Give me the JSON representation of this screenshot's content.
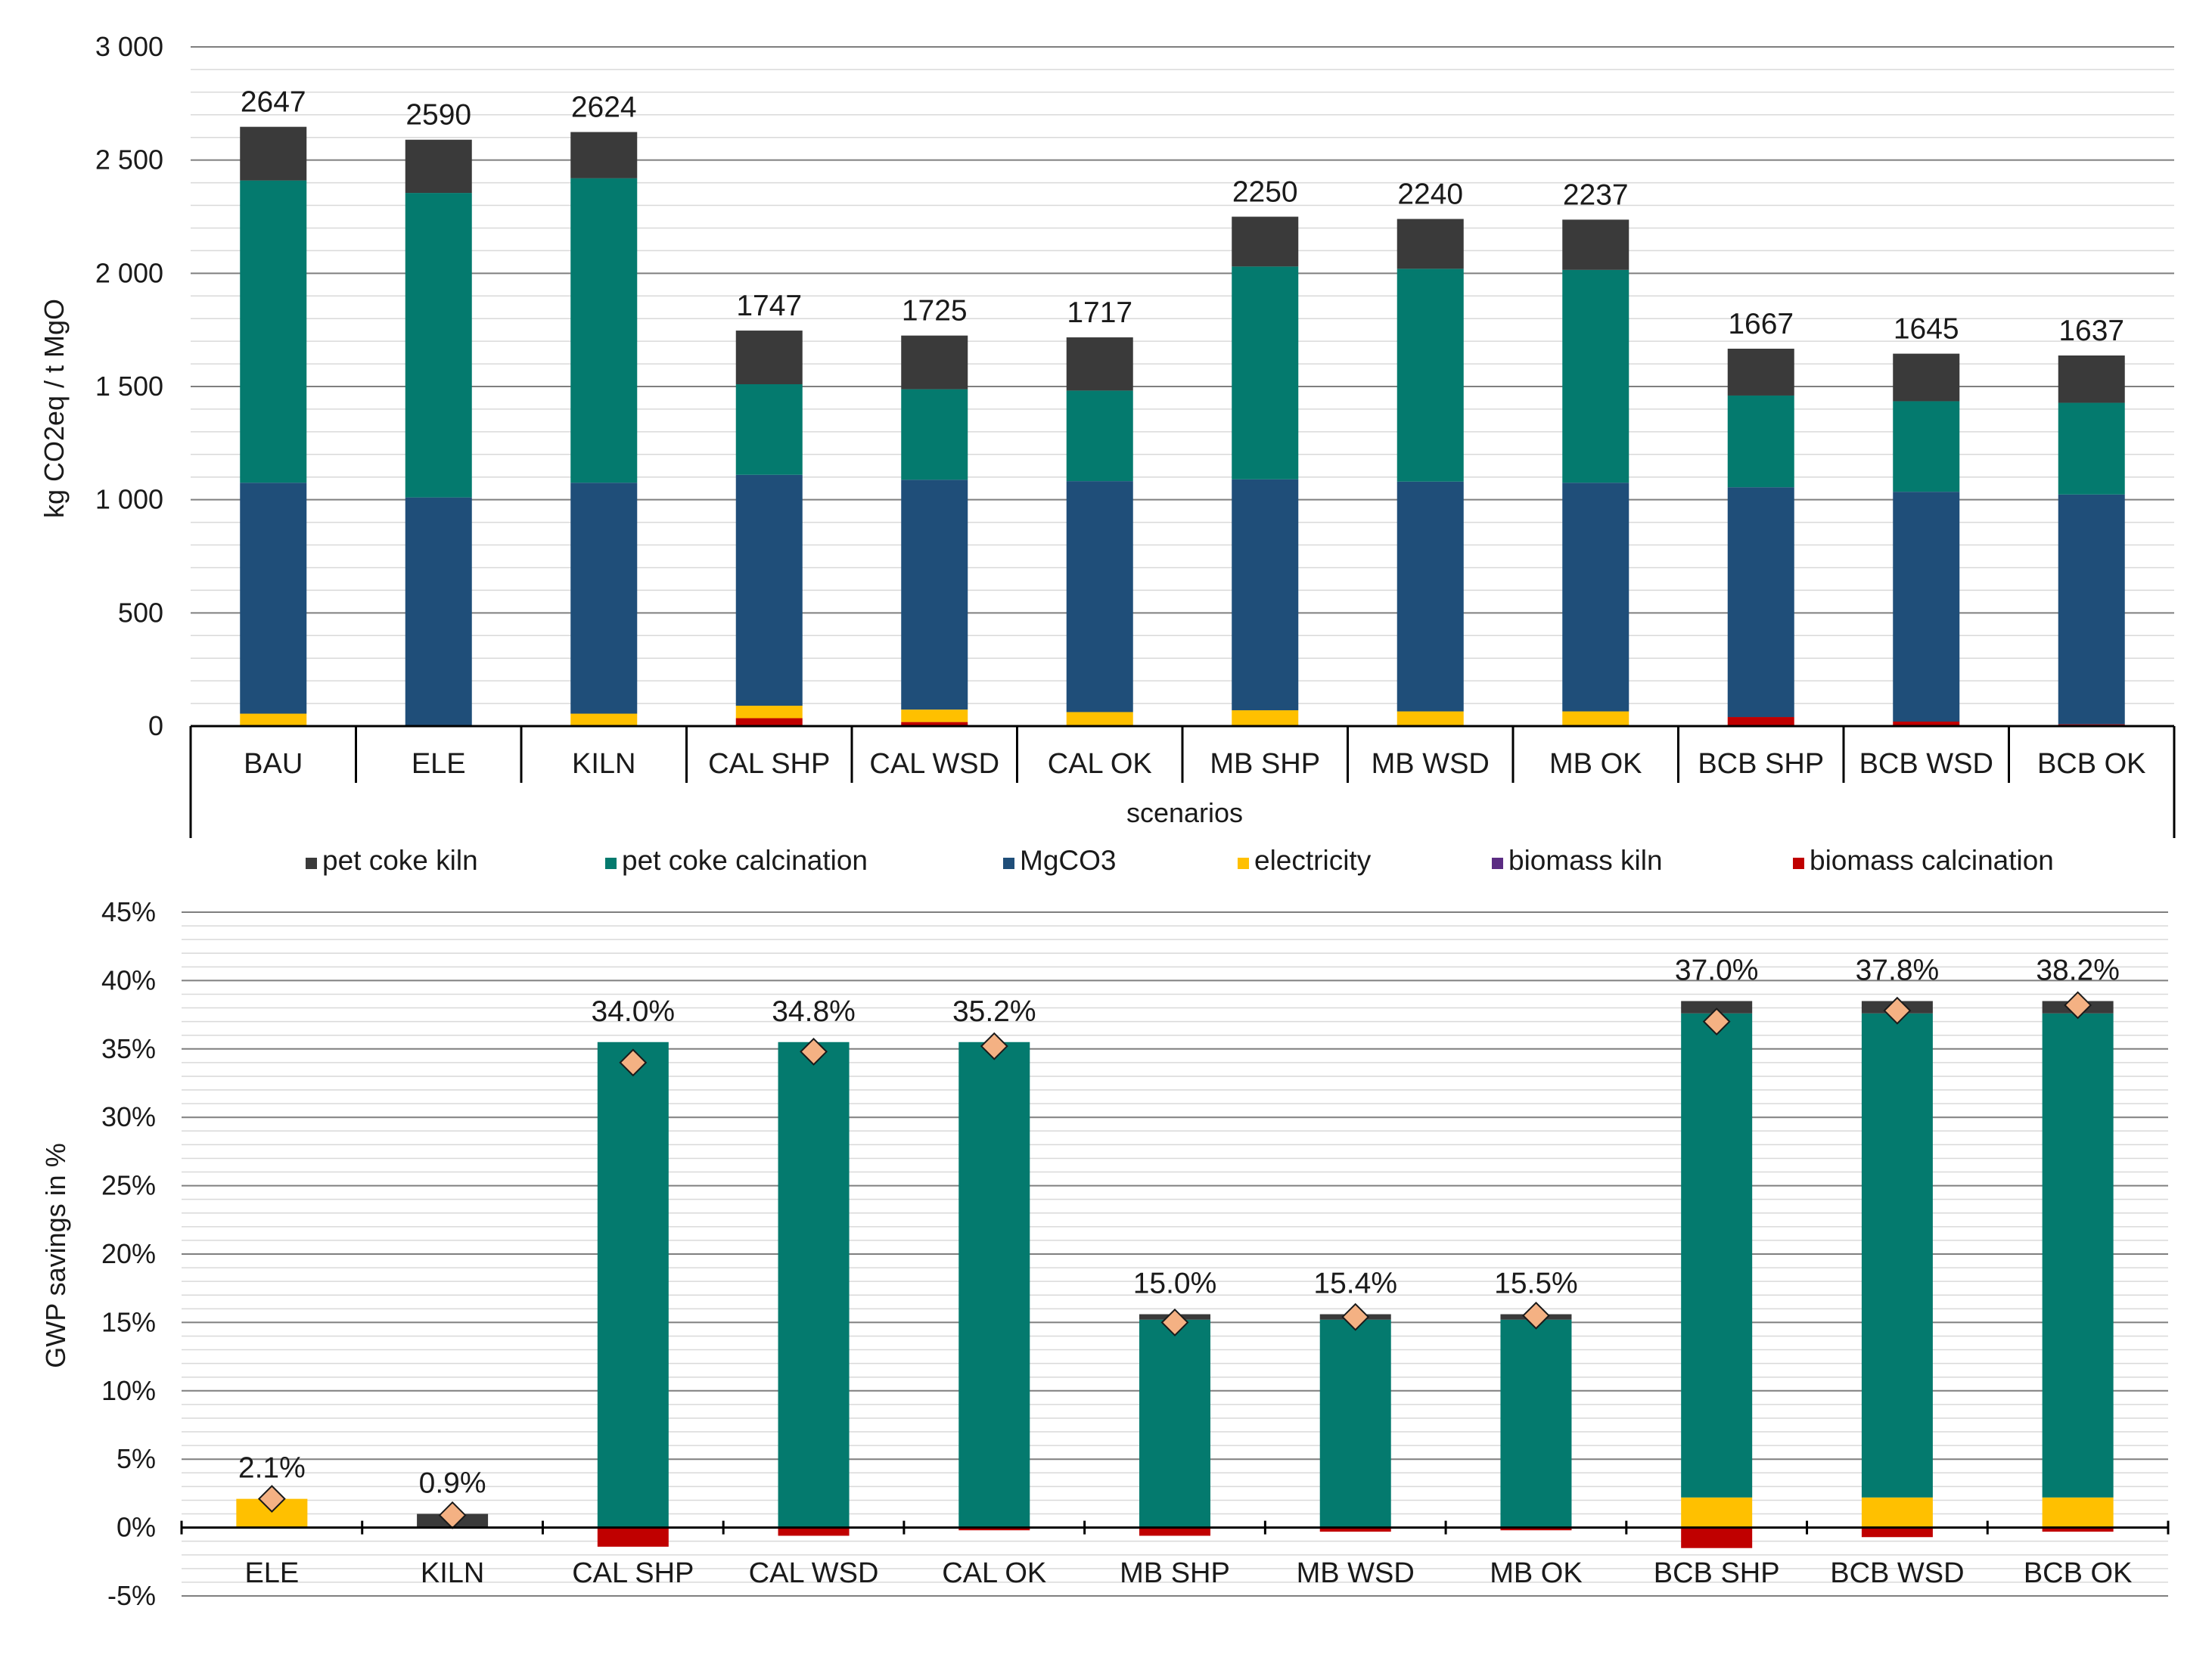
{
  "series_colors": {
    "pet coke kiln": "#3a3a3a",
    "pet coke calcination": "#047a6e",
    "MgCO3": "#1f4e79",
    "electricity": "#ffc000",
    "biomass kiln": "#5b2c83",
    "biomass calcination": "#c00000"
  },
  "marker_color": "#f4b183",
  "legend": {
    "items": [
      "pet coke kiln",
      "pet coke calcination",
      "MgCO3",
      "electricity",
      "biomass kiln",
      "biomass calcination"
    ]
  },
  "chart_data": [
    {
      "type": "bar",
      "stacked": true,
      "ylabel": "kg CO2eq / t MgO",
      "xlabel": "scenarios",
      "ylim": [
        0,
        3000
      ],
      "y_ticks": [
        "0",
        "500",
        "1 000",
        "1 500",
        "2 000",
        "2 500",
        "3 000"
      ],
      "grid": true,
      "categories": [
        "BAU",
        "ELE",
        "KILN",
        "CAL SHP",
        "CAL WSD",
        "CAL OK",
        "MB SHP",
        "MB WSD",
        "MB OK",
        "BCB SHP",
        "BCB WSD",
        "BCB OK"
      ],
      "series": [
        {
          "name": "biomass calcination",
          "values": [
            0,
            0,
            0,
            35,
            18,
            0,
            0,
            0,
            0,
            40,
            20,
            8
          ]
        },
        {
          "name": "biomass kiln",
          "values": [
            0,
            0,
            0,
            0,
            0,
            0,
            0,
            0,
            0,
            0,
            0,
            0
          ]
        },
        {
          "name": "electricity",
          "values": [
            55,
            0,
            55,
            55,
            55,
            62,
            70,
            65,
            65,
            0,
            0,
            0
          ]
        },
        {
          "name": "MgCO3",
          "values": [
            1020,
            1010,
            1020,
            1020,
            1015,
            1020,
            1020,
            1015,
            1010,
            1015,
            1015,
            1015
          ]
        },
        {
          "name": "pet coke calcination",
          "values": [
            1335,
            1345,
            1345,
            400,
            400,
            400,
            940,
            940,
            940,
            405,
            400,
            405
          ]
        },
        {
          "name": "pet coke kiln",
          "values": [
            237,
            235,
            204,
            237,
            237,
            235,
            220,
            220,
            222,
            207,
            210,
            209
          ]
        }
      ],
      "totals": [
        2647,
        2590,
        2624,
        1747,
        1725,
        1717,
        2250,
        2240,
        2237,
        1667,
        1645,
        1637
      ],
      "total_labels": [
        "2647",
        "2590",
        "2624",
        "1747",
        "1725",
        "1717",
        "2250",
        "2240",
        "2237",
        "1667",
        "1645",
        "1637"
      ]
    },
    {
      "type": "bar",
      "stacked": true,
      "ylabel": "GWP savings in %",
      "xlabel": "",
      "ylim": [
        -5,
        45
      ],
      "y_ticks": [
        "-5%",
        "0%",
        "5%",
        "10%",
        "15%",
        "20%",
        "25%",
        "30%",
        "35%",
        "40%",
        "45%"
      ],
      "grid": true,
      "categories": [
        "ELE",
        "KILN",
        "CAL SHP",
        "CAL WSD",
        "CAL OK",
        "MB SHP",
        "MB WSD",
        "MB OK",
        "BCB SHP",
        "BCB WSD",
        "BCB OK"
      ],
      "series": [
        {
          "name": "electricity",
          "values": [
            2.1,
            0,
            0,
            0,
            0,
            0,
            0,
            0,
            2.2,
            2.2,
            2.2
          ]
        },
        {
          "name": "pet coke calcination",
          "values": [
            0,
            0,
            35.5,
            35.5,
            35.5,
            15.2,
            15.2,
            15.2,
            35.4,
            35.4,
            35.4
          ]
        },
        {
          "name": "pet coke kiln",
          "values": [
            0,
            1.0,
            0,
            0,
            0,
            0.4,
            0.4,
            0.4,
            0.9,
            0.9,
            0.9
          ]
        },
        {
          "name": "biomass calcination",
          "values": [
            0,
            0,
            -1.4,
            -0.6,
            -0.2,
            -0.6,
            -0.3,
            -0.2,
            -1.5,
            -0.7,
            -0.3
          ]
        }
      ],
      "net_values": [
        2.1,
        0.9,
        34.0,
        34.8,
        35.2,
        15.0,
        15.4,
        15.5,
        37.0,
        37.8,
        38.2
      ],
      "net_labels": [
        "2.1%",
        "0.9%",
        "34.0%",
        "34.8%",
        "35.2%",
        "15.0%",
        "15.4%",
        "15.5%",
        "37.0%",
        "37.8%",
        "38.2%"
      ]
    }
  ]
}
